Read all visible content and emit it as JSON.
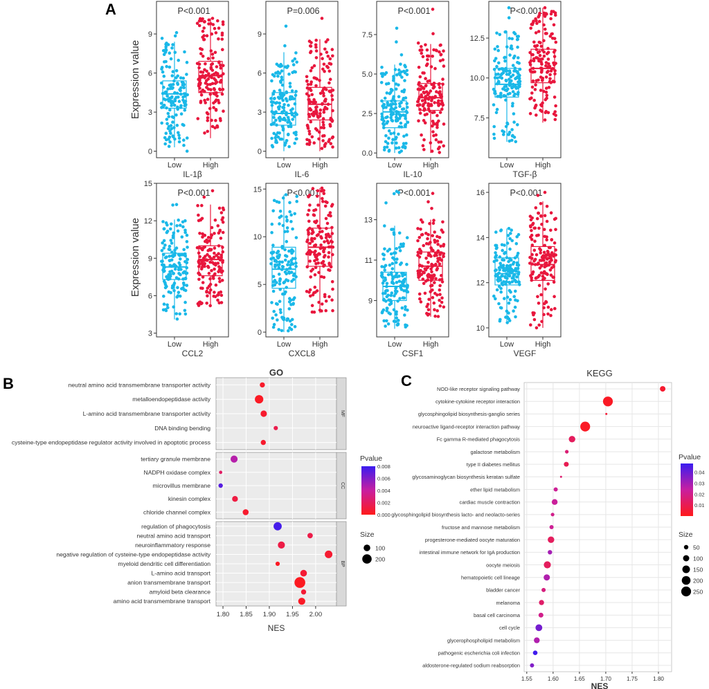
{
  "panels": {
    "a": "A",
    "b": "B",
    "c": "C"
  },
  "colors": {
    "low": "#1ab8e8",
    "high": "#e8173d",
    "grid": "#e6e6e6",
    "facet_strip": "#d9d9d9",
    "pvalue_high": "#3a1cf0",
    "pvalue_mid": "#c81fa0",
    "pvalue_low": "#ff1a1a"
  },
  "chart_data": [
    {
      "type": "box",
      "title": "IL-1β",
      "xlabel": "IL-1β",
      "ylabel": "Expression value",
      "categories": [
        "Low",
        "High"
      ],
      "ylim": [
        -0.5,
        11.5
      ],
      "yticks": [
        0,
        3,
        6,
        9
      ],
      "pvalue": "P<0.001",
      "series": [
        {
          "name": "Low",
          "min": 0.3,
          "q1": 3.3,
          "median": 4.4,
          "q3": 5.4,
          "max": 8.4,
          "spread": [
            0,
            9.1
          ],
          "n": 150
        },
        {
          "name": "High",
          "min": 1.0,
          "q1": 4.5,
          "median": 5.8,
          "q3": 6.9,
          "max": 10.2,
          "spread": [
            0,
            10.2
          ],
          "n": 150
        }
      ]
    },
    {
      "type": "box",
      "title": "IL-6",
      "xlabel": "IL-6",
      "ylabel": "",
      "categories": [
        "Low",
        "High"
      ],
      "ylim": [
        -0.5,
        11.5
      ],
      "yticks": [
        0,
        3,
        6,
        9
      ],
      "pvalue": "P=0.006",
      "series": [
        {
          "name": "Low",
          "min": 0,
          "q1": 2.0,
          "median": 2.9,
          "q3": 4.5,
          "max": 7.6,
          "spread": [
            0,
            9.6
          ],
          "n": 150
        },
        {
          "name": "High",
          "min": 0,
          "q1": 2.4,
          "median": 3.6,
          "q3": 4.9,
          "max": 8.6,
          "spread": [
            0,
            10.2
          ],
          "n": 150
        }
      ]
    },
    {
      "type": "box",
      "title": "IL-10",
      "xlabel": "IL-10",
      "ylabel": "",
      "categories": [
        "Low",
        "High"
      ],
      "ylim": [
        -0.3,
        9.6
      ],
      "yticks": [
        0.0,
        2.5,
        5.0,
        7.5
      ],
      "pvalue": "P<0.001",
      "series": [
        {
          "name": "Low",
          "min": 0.0,
          "q1": 1.6,
          "median": 2.6,
          "q3": 3.3,
          "max": 5.6,
          "spread": [
            0,
            7.9
          ],
          "n": 150
        },
        {
          "name": "High",
          "min": 0.0,
          "q1": 2.7,
          "median": 3.5,
          "q3": 4.4,
          "max": 6.9,
          "spread": [
            0,
            9.1
          ],
          "n": 150
        }
      ]
    },
    {
      "type": "box",
      "title": "TGF-β",
      "xlabel": "TGF-β",
      "ylabel": "",
      "categories": [
        "Low",
        "High"
      ],
      "ylim": [
        5.0,
        14.8
      ],
      "yticks": [
        7.5,
        10.0,
        12.5
      ],
      "pvalue": "P<0.001",
      "series": [
        {
          "name": "Low",
          "min": 6.0,
          "q1": 8.8,
          "median": 9.6,
          "q3": 10.6,
          "max": 12.9,
          "spread": [
            6.0,
            14.4
          ],
          "n": 150
        },
        {
          "name": "High",
          "min": 7.2,
          "q1": 9.7,
          "median": 10.6,
          "q3": 11.8,
          "max": 14.4,
          "spread": [
            7.1,
            14.4
          ],
          "n": 150
        }
      ]
    },
    {
      "type": "box",
      "title": "CCL2",
      "xlabel": "CCL2",
      "ylabel": "Expression value",
      "categories": [
        "Low",
        "High"
      ],
      "ylim": [
        2.7,
        15.0
      ],
      "yticks": [
        3,
        6,
        9,
        12,
        15
      ],
      "pvalue": "P<0.001",
      "series": [
        {
          "name": "Low",
          "min": 4.1,
          "q1": 7.3,
          "median": 8.3,
          "q3": 9.4,
          "max": 12.1,
          "spread": [
            3.5,
            13.3
          ],
          "n": 150
        },
        {
          "name": "High",
          "min": 5.2,
          "q1": 7.6,
          "median": 8.9,
          "q3": 10.0,
          "max": 13.3,
          "spread": [
            5.2,
            14.4
          ],
          "n": 150
        }
      ]
    },
    {
      "type": "box",
      "title": "CXCL8",
      "xlabel": "CXCL8",
      "ylabel": "",
      "categories": [
        "Low",
        "High"
      ],
      "ylim": [
        -0.5,
        15.6
      ],
      "yticks": [
        0,
        5,
        10,
        15
      ],
      "pvalue": "P<0.001",
      "series": [
        {
          "name": "Low",
          "min": 0.0,
          "q1": 4.6,
          "median": 6.6,
          "q3": 8.9,
          "max": 14.4,
          "spread": [
            0,
            14.4
          ],
          "n": 150
        },
        {
          "name": "High",
          "min": 2.0,
          "q1": 6.9,
          "median": 8.9,
          "q3": 10.9,
          "max": 15.1,
          "spread": [
            0,
            15.1
          ],
          "n": 150
        }
      ]
    },
    {
      "type": "box",
      "title": "CSF1",
      "xlabel": "CSF1",
      "ylabel": "",
      "categories": [
        "Low",
        "High"
      ],
      "ylim": [
        7.2,
        14.8
      ],
      "yticks": [
        9,
        11,
        13
      ],
      "pvalue": "P<0.001",
      "series": [
        {
          "name": "Low",
          "min": 7.6,
          "q1": 9.0,
          "median": 9.7,
          "q3": 10.4,
          "max": 12.7,
          "spread": [
            7.6,
            14.4
          ],
          "n": 150
        },
        {
          "name": "High",
          "min": 8.2,
          "q1": 10.0,
          "median": 10.7,
          "q3": 11.4,
          "max": 13.0,
          "spread": [
            8.1,
            14.3
          ],
          "n": 150
        }
      ]
    },
    {
      "type": "box",
      "title": "VEGF",
      "xlabel": "VEGF",
      "ylabel": "",
      "categories": [
        "Low",
        "High"
      ],
      "ylim": [
        9.6,
        16.4
      ],
      "yticks": [
        10,
        12,
        14,
        16
      ],
      "pvalue": "P<0.001",
      "series": [
        {
          "name": "Low",
          "min": 10.3,
          "q1": 11.9,
          "median": 12.4,
          "q3": 13.1,
          "max": 14.4,
          "spread": [
            10.0,
            14.4
          ],
          "n": 150
        },
        {
          "name": "High",
          "min": 10.0,
          "q1": 12.1,
          "median": 12.8,
          "q3": 13.6,
          "max": 15.6,
          "spread": [
            9.9,
            16.0
          ],
          "n": 150
        }
      ]
    },
    {
      "type": "scatter",
      "subtype": "dotplot",
      "title": "GO",
      "xlabel": "NES",
      "xlim": [
        1.785,
        2.045
      ],
      "xticks": [
        1.8,
        1.85,
        1.9,
        1.95,
        2.0
      ],
      "legend_pvalue": {
        "title": "Pvalue",
        "min": 0,
        "max": 0.008,
        "ticks": [
          0.0,
          0.002,
          0.004,
          0.006,
          0.008
        ]
      },
      "legend_size": {
        "title": "Size",
        "entries": [
          100,
          200
        ],
        "range": [
          30,
          260
        ]
      },
      "facets": [
        "MF",
        "CC",
        "BP"
      ],
      "terms": [
        {
          "facet": "MF",
          "term": "neutral amino acid transmembrane transporter activity",
          "nes": 1.885,
          "pvalue": 0.0005,
          "size": 60
        },
        {
          "facet": "MF",
          "term": "metalloendopeptidase activity",
          "nes": 1.878,
          "pvalue": 0.0003,
          "size": 160
        },
        {
          "facet": "MF",
          "term": "L-amino acid transmembrane transporter activity",
          "nes": 1.888,
          "pvalue": 0.0006,
          "size": 90
        },
        {
          "facet": "MF",
          "term": "DNA binding bending",
          "nes": 1.914,
          "pvalue": 0.0015,
          "size": 40
        },
        {
          "facet": "MF",
          "term": "cysteine-type endopeptidase regulator activity involved in apoptotic process",
          "nes": 1.887,
          "pvalue": 0.0006,
          "size": 60
        },
        {
          "facet": "CC",
          "term": "tertiary granule membrane",
          "nes": 1.824,
          "pvalue": 0.0045,
          "size": 110
        },
        {
          "facet": "CC",
          "term": "NADPH oxidase complex",
          "nes": 1.795,
          "pvalue": 0.0022,
          "size": 25
        },
        {
          "facet": "CC",
          "term": "microvillus membrane",
          "nes": 1.795,
          "pvalue": 0.0072,
          "size": 45
        },
        {
          "facet": "CC",
          "term": "kinesin complex",
          "nes": 1.826,
          "pvalue": 0.0012,
          "size": 75
        },
        {
          "facet": "CC",
          "term": "chloride channel complex",
          "nes": 1.849,
          "pvalue": 0.0006,
          "size": 80
        },
        {
          "facet": "BP",
          "term": "regulation of phagocytosis",
          "nes": 1.918,
          "pvalue": 0.0077,
          "size": 150
        },
        {
          "facet": "BP",
          "term": "neutral amino acid transport",
          "nes": 1.988,
          "pvalue": 0.0014,
          "size": 65
        },
        {
          "facet": "BP",
          "term": "neuroinflammatory response",
          "nes": 1.926,
          "pvalue": 0.0013,
          "size": 110
        },
        {
          "facet": "BP",
          "term": "negative regulation of cysteine-type endopeptidase activity",
          "nes": 2.028,
          "pvalue": 0.0007,
          "size": 130
        },
        {
          "facet": "BP",
          "term": "myeloid dendritic cell differentiation",
          "nes": 1.918,
          "pvalue": 0.0003,
          "size": 40
        },
        {
          "facet": "BP",
          "term": "L-amino acid transport",
          "nes": 1.974,
          "pvalue": 0.0008,
          "size": 100
        },
        {
          "facet": "BP",
          "term": "anion transmembrane transport",
          "nes": 1.966,
          "pvalue": 0.0002,
          "size": 260
        },
        {
          "facet": "BP",
          "term": "amyloid beta clearance",
          "nes": 1.974,
          "pvalue": 0.0008,
          "size": 60
        },
        {
          "facet": "BP",
          "term": "amino acid transmembrane transport",
          "nes": 1.97,
          "pvalue": 0.0004,
          "size": 110
        }
      ]
    },
    {
      "type": "scatter",
      "subtype": "dotplot",
      "title": "KEGG",
      "xlabel": "NES",
      "xlim": [
        1.545,
        1.825
      ],
      "xticks": [
        1.55,
        1.6,
        1.65,
        1.7,
        1.75,
        1.8
      ],
      "legend_pvalue": {
        "title": "Pvalue",
        "min": 0,
        "max": 0.048,
        "ticks": [
          0.01,
          0.02,
          0.03,
          0.04
        ]
      },
      "legend_size": {
        "title": "Size",
        "entries": [
          50,
          100,
          150,
          200,
          250
        ],
        "range": [
          10,
          260
        ]
      },
      "terms": [
        {
          "term": "NOD-like receptor signaling pathway",
          "nes": 1.808,
          "pvalue": 0.004,
          "size": 80
        },
        {
          "term": "cytokine-cytokine receptor interaction",
          "nes": 1.704,
          "pvalue": 0.002,
          "size": 250
        },
        {
          "term": "glycosphingolipid biosynthesis-ganglio series",
          "nes": 1.701,
          "pvalue": 0.005,
          "size": 12
        },
        {
          "term": "neuroactive ligand-receptor interaction pathway",
          "nes": 1.661,
          "pvalue": 0.002,
          "size": 250
        },
        {
          "term": "Fc gamma R-mediated phagocytosis",
          "nes": 1.636,
          "pvalue": 0.012,
          "size": 110
        },
        {
          "term": "galactose metabolism",
          "nes": 1.626,
          "pvalue": 0.016,
          "size": 35
        },
        {
          "term": "type II diabetes mellitus",
          "nes": 1.625,
          "pvalue": 0.01,
          "size": 60
        },
        {
          "term": "glycosaminoglycan biosynthesis keratan sulfate",
          "nes": 1.615,
          "pvalue": 0.015,
          "size": 12
        },
        {
          "term": "ether lipid metabolism",
          "nes": 1.605,
          "pvalue": 0.022,
          "size": 45
        },
        {
          "term": "cardiac muscle contraction",
          "nes": 1.603,
          "pvalue": 0.023,
          "size": 90
        },
        {
          "term": "glycosphingolipid biosynthesis lacto- and neolacto-series",
          "nes": 1.599,
          "pvalue": 0.02,
          "size": 35
        },
        {
          "term": "fructose and mannose metabolism",
          "nes": 1.597,
          "pvalue": 0.022,
          "size": 45
        },
        {
          "term": "progesterone-mediated oocyte maturation",
          "nes": 1.596,
          "pvalue": 0.012,
          "size": 110
        },
        {
          "term": "intestinal immune network for IgA production",
          "nes": 1.594,
          "pvalue": 0.03,
          "size": 50
        },
        {
          "term": "oocyte meiosis",
          "nes": 1.589,
          "pvalue": 0.012,
          "size": 130
        },
        {
          "term": "hematopoietic cell lineage",
          "nes": 1.588,
          "pvalue": 0.028,
          "size": 100
        },
        {
          "term": "bladder cancer",
          "nes": 1.582,
          "pvalue": 0.018,
          "size": 45
        },
        {
          "term": "melanoma",
          "nes": 1.578,
          "pvalue": 0.014,
          "size": 70
        },
        {
          "term": "basal cell carcinoma",
          "nes": 1.577,
          "pvalue": 0.02,
          "size": 60
        },
        {
          "term": "cell cycle",
          "nes": 1.573,
          "pvalue": 0.038,
          "size": 120
        },
        {
          "term": "glycerophospholipid metabolism",
          "nes": 1.569,
          "pvalue": 0.028,
          "size": 90
        },
        {
          "term": "pathogenic escherichia coli infection",
          "nes": 1.566,
          "pvalue": 0.047,
          "size": 55
        },
        {
          "term": "aldosterone-regulated sodium reabsorption",
          "nes": 1.56,
          "pvalue": 0.036,
          "size": 45
        }
      ]
    }
  ]
}
